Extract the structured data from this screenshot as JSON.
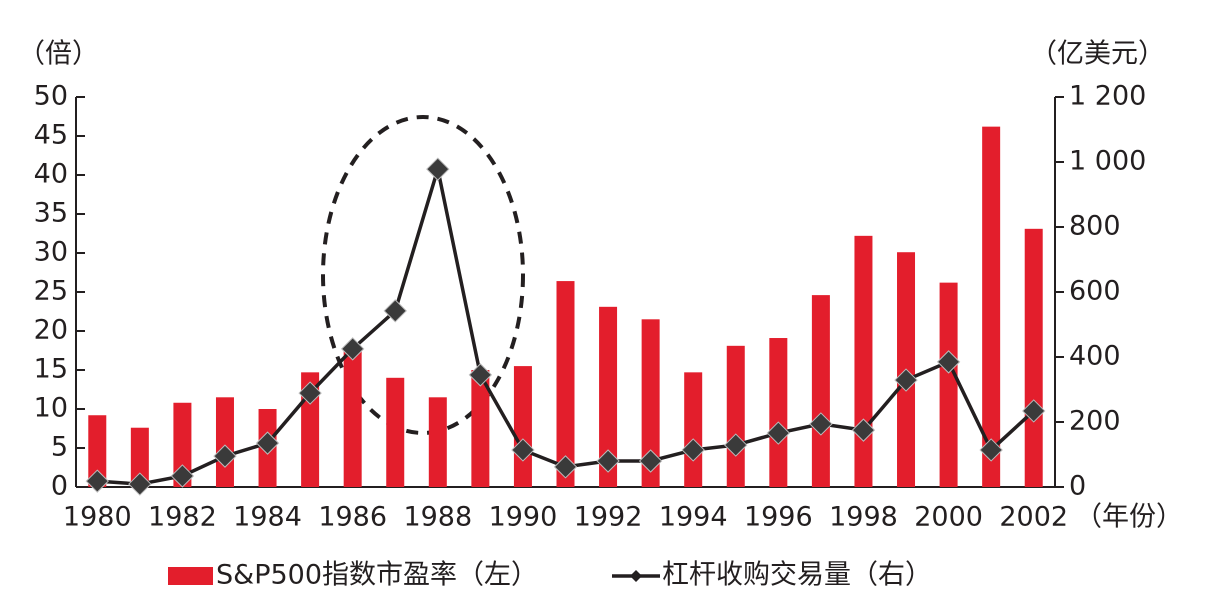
{
  "chart_data": {
    "type": "bar-line",
    "y_label": "（倍）",
    "y2_label": "（亿美元）",
    "x_label": "（年份）",
    "categories": [
      "1980",
      null,
      "1982",
      null,
      "1984",
      null,
      "1986",
      null,
      "1988",
      null,
      "1990",
      null,
      "1992",
      null,
      "1994",
      null,
      "1996",
      null,
      "1998",
      null,
      "2000",
      null,
      "2002"
    ],
    "series": [
      {
        "name": "S&P500指数市盈率（左）",
        "type": "bar",
        "color": "#e31e2c",
        "values": [
          9.2,
          7.6,
          10.8,
          11.5,
          10,
          14.7,
          17.5,
          14,
          11.5,
          15,
          15.5,
          26.4,
          23.1,
          21.5,
          14.7,
          18.1,
          19.1,
          24.6,
          32.2,
          30.1,
          26.2,
          46.2,
          33.1
        ]
      },
      {
        "name": "杠杆收购交易量（右）",
        "type": "line",
        "axis": "y2",
        "color": "#231f20",
        "values": [
          18,
          9,
          34,
          95,
          135,
          289,
          425,
          542,
          978,
          345,
          114,
          62,
          80,
          80,
          114,
          129,
          166,
          194,
          175,
          329,
          385,
          114,
          234
        ]
      }
    ],
    "ylim": [
      0,
      50
    ],
    "yticks": [
      0,
      5,
      10,
      15,
      20,
      25,
      30,
      35,
      40,
      45,
      50
    ],
    "y2lim": [
      0,
      1200
    ],
    "y2ticks": [
      0,
      200,
      400,
      600,
      800,
      {
        "value": 1000,
        "label": "1 000"
      },
      {
        "value": 1200,
        "label": "1 200"
      }
    ]
  }
}
